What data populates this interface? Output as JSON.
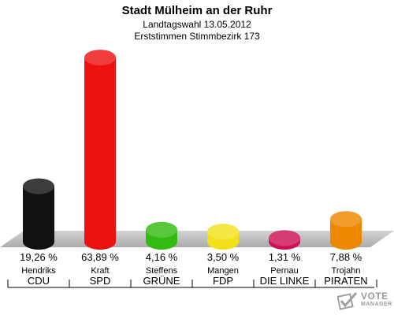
{
  "title": "Stadt Mülheim an der Ruhr",
  "subtitle1": "Landtagswahl 13.05.2012",
  "subtitle2": "Erststimmen Stimmbezirk 173",
  "logo": {
    "text": "VOTE",
    "sub": "MANAGER"
  },
  "chart_data": {
    "type": "bar",
    "categories": [
      "CDU",
      "SPD",
      "GRÜNE",
      "FDP",
      "DIE LINKE",
      "PIRATEN"
    ],
    "candidates": [
      "Hendriks",
      "Kraft",
      "Steffens",
      "Mangen",
      "Pernau",
      "Trojahn"
    ],
    "values": [
      19.26,
      63.89,
      4.16,
      3.5,
      1.31,
      7.88
    ],
    "value_labels": [
      "19,26 %",
      "63,89 %",
      "4,16 %",
      "3,50 %",
      "1,31 %",
      "7,88 %"
    ],
    "colors": [
      "#111111",
      "#ee1111",
      "#33bb11",
      "#f2e01a",
      "#cc1155",
      "#ee8800"
    ],
    "ylim": [
      0,
      65
    ],
    "grid": false
  }
}
